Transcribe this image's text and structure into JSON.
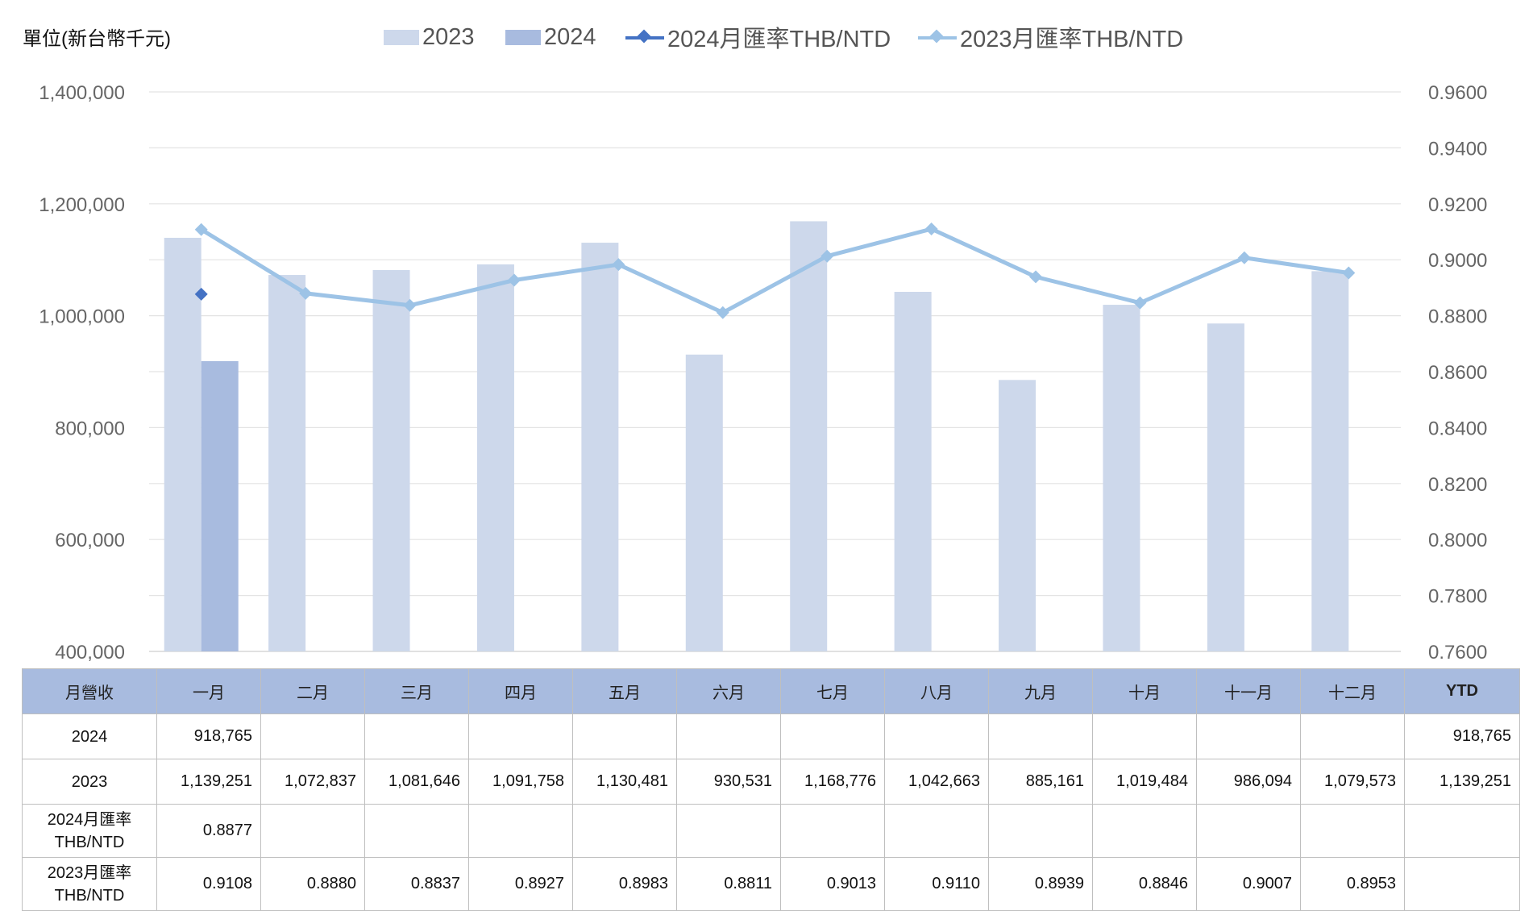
{
  "chart_data": {
    "type": "bar",
    "unit_label": "單位(新台幣千元)",
    "categories": [
      "一月",
      "二月",
      "三月",
      "四月",
      "五月",
      "六月",
      "七月",
      "八月",
      "九月",
      "十月",
      "十一月",
      "十二月"
    ],
    "series": [
      {
        "name": "2023",
        "kind": "bar",
        "axis": "left",
        "color": "#cdd8eb",
        "values": [
          1139251,
          1072837,
          1081646,
          1091758,
          1130481,
          930531,
          1168776,
          1042663,
          885161,
          1019484,
          986094,
          1079573
        ]
      },
      {
        "name": "2024",
        "kind": "bar",
        "axis": "left",
        "color": "#a8bbdf",
        "values": [
          918765,
          null,
          null,
          null,
          null,
          null,
          null,
          null,
          null,
          null,
          null,
          null
        ]
      },
      {
        "name": "2024月匯率THB/NTD",
        "kind": "line",
        "axis": "right",
        "color": "#4472c4",
        "values": [
          0.8877,
          null,
          null,
          null,
          null,
          null,
          null,
          null,
          null,
          null,
          null,
          null
        ]
      },
      {
        "name": "2023月匯率THB/NTD",
        "kind": "line",
        "axis": "right",
        "color": "#9dc3e6",
        "values": [
          0.9108,
          0.888,
          0.8837,
          0.8927,
          0.8983,
          0.8811,
          0.9013,
          0.911,
          0.8939,
          0.8846,
          0.9007,
          0.8953
        ]
      }
    ],
    "y_left": {
      "min": 400000,
      "max": 1400000,
      "ticks": [
        "400,000",
        "600,000",
        "800,000",
        "1,000,000",
        "1,200,000",
        "1,400,000"
      ]
    },
    "y_right": {
      "min": 0.76,
      "max": 0.96,
      "ticks": [
        "0.7600",
        "0.7800",
        "0.8000",
        "0.8200",
        "0.8400",
        "0.8600",
        "0.8800",
        "0.9000",
        "0.9200",
        "0.9400",
        "0.9600"
      ]
    },
    "grid": true,
    "legend_position": "top"
  },
  "table": {
    "header": [
      "月營收",
      "一月",
      "二月",
      "三月",
      "四月",
      "五月",
      "六月",
      "七月",
      "八月",
      "九月",
      "十月",
      "十一月",
      "十二月",
      "YTD"
    ],
    "rows": [
      {
        "label": "2024",
        "cells": [
          "918,765",
          "",
          "",
          "",
          "",
          "",
          "",
          "",
          "",
          "",
          "",
          "",
          "918,765"
        ]
      },
      {
        "label": "2023",
        "cells": [
          "1,139,251",
          "1,072,837",
          "1,081,646",
          "1,091,758",
          "1,130,481",
          "930,531",
          "1,168,776",
          "1,042,663",
          "885,161",
          "1,019,484",
          "986,094",
          "1,079,573",
          "1,139,251"
        ]
      },
      {
        "label_line1": "2024月匯率",
        "label_line2": "THB/NTD",
        "cells": [
          "0.8877",
          "",
          "",
          "",
          "",
          "",
          "",
          "",
          "",
          "",
          "",
          "",
          ""
        ]
      },
      {
        "label_line1": "2023月匯率",
        "label_line2": "THB/NTD",
        "cells": [
          "0.9108",
          "0.8880",
          "0.8837",
          "0.8927",
          "0.8983",
          "0.8811",
          "0.9013",
          "0.9110",
          "0.8939",
          "0.8846",
          "0.9007",
          "0.8953",
          ""
        ]
      }
    ]
  }
}
